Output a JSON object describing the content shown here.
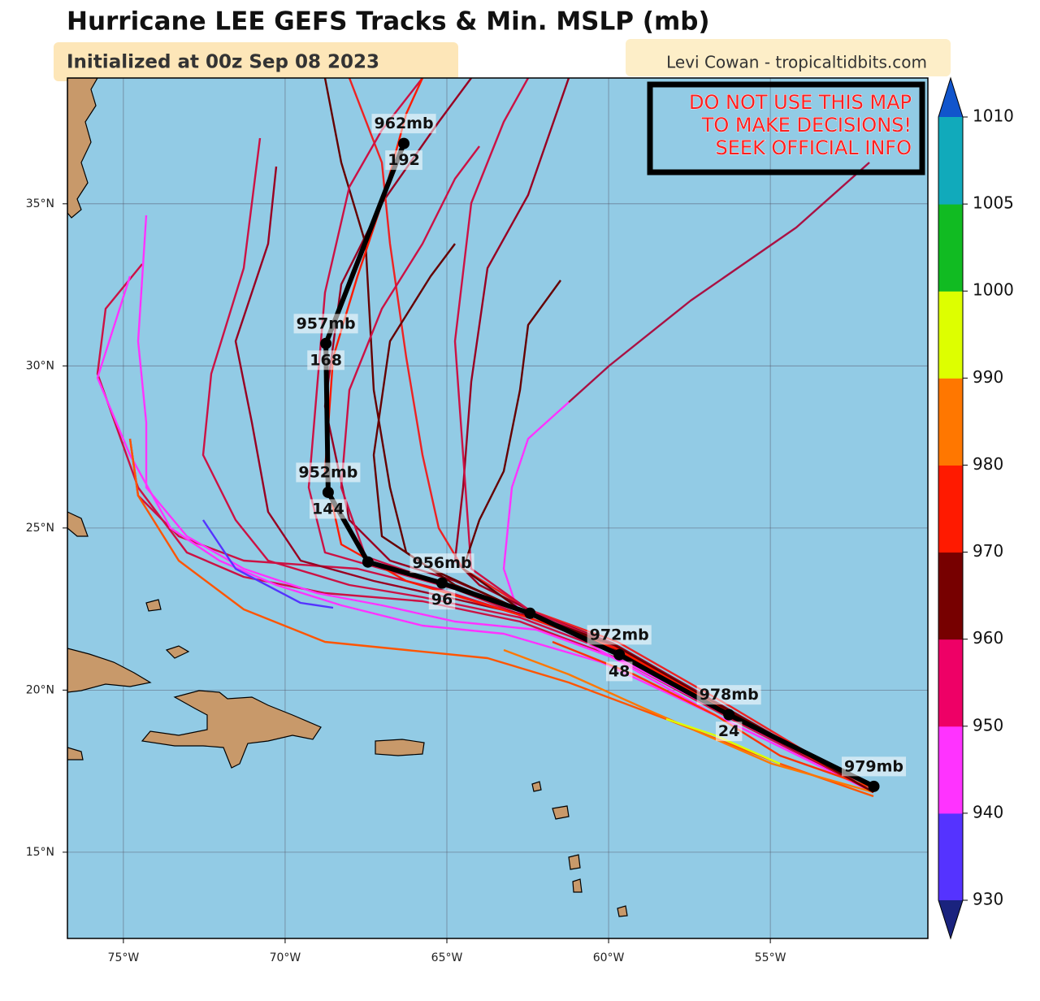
{
  "map": {
    "title": "Hurricane LEE GEFS Tracks & Min. MSLP (mb)",
    "subtitle": "Initialized at 00z Sep 08 2023",
    "credit": "Levi Cowan - tropicaltidbits.com",
    "warning": [
      "DO NOT USE THIS MAP",
      "TO MAKE DECISIONS!",
      "SEEK OFFICIAL INFO"
    ],
    "lonlim": [
      -76.73,
      -50.13
    ],
    "latlim": [
      12.34,
      38.88
    ],
    "lonticks": [
      {
        "value": -75,
        "label": "75°W"
      },
      {
        "value": -70,
        "label": "70°W"
      },
      {
        "value": -65,
        "label": "65°W"
      },
      {
        "value": -60,
        "label": "60°W"
      },
      {
        "value": -55,
        "label": "55°W"
      }
    ],
    "latticks": [
      {
        "value": 15,
        "label": "15°N"
      },
      {
        "value": 20,
        "label": "20°N"
      },
      {
        "value": 25,
        "label": "25°N"
      },
      {
        "value": 30,
        "label": "30°N"
      },
      {
        "value": 35,
        "label": "35°N"
      }
    ],
    "grid": true,
    "mean_track": {
      "color": "#000000",
      "lon": [
        -51.8,
        -56.28,
        -59.67,
        -62.43,
        -65.15,
        -67.44,
        -68.67,
        -68.74,
        -66.33
      ],
      "lat": [
        17.03,
        19.24,
        21.09,
        22.37,
        23.3,
        23.95,
        26.1,
        30.69,
        36.86
      ],
      "pressure_labels": [
        "979mb",
        "978mb",
        "972mb",
        null,
        "956mb",
        null,
        "952mb",
        "957mb",
        "962mb"
      ],
      "hour_labels": [
        null,
        24,
        48,
        null,
        96,
        null,
        144,
        168,
        192
      ]
    },
    "colorbar": {
      "ticks": [
        930,
        940,
        950,
        960,
        970,
        980,
        990,
        1000,
        1005,
        1010
      ],
      "colors": [
        "#5533ff",
        "#ff33ff",
        "#ee0066",
        "#770000",
        "#ff1a00",
        "#ff7700",
        "#ddff00",
        "#11bb22",
        "#11aabb"
      ],
      "under_color": "#1a237e",
      "over_color": "#1155cc"
    }
  }
}
